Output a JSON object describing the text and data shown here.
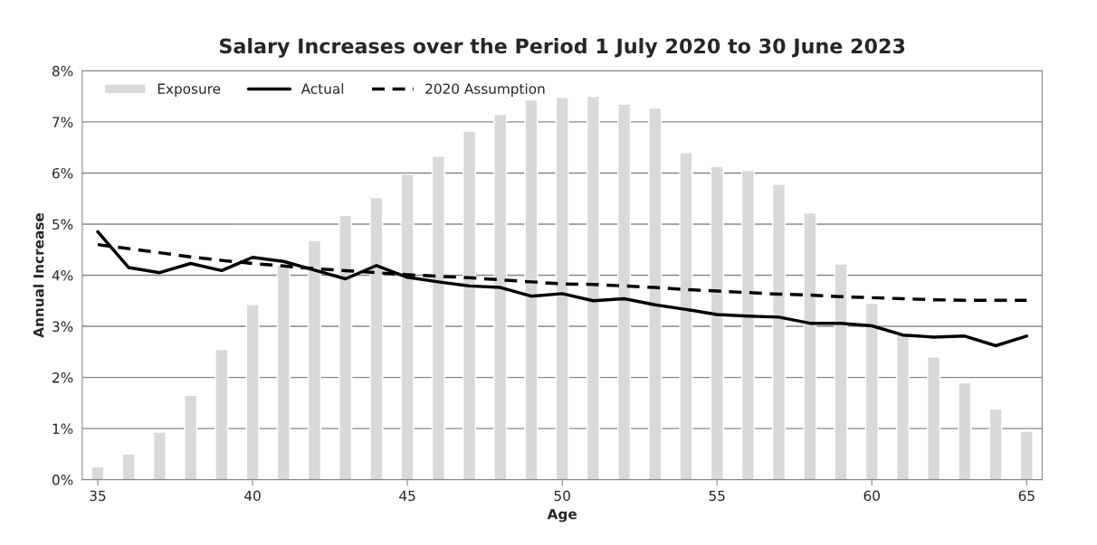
{
  "chart_data": {
    "type": "bar",
    "title": "Salary Increases over the Period 1 July 2020 to 30 June 2023",
    "xlabel": "Age",
    "ylabel": "Annual Increase",
    "x": [
      35,
      36,
      37,
      38,
      39,
      40,
      41,
      42,
      43,
      44,
      45,
      46,
      47,
      48,
      49,
      50,
      51,
      52,
      53,
      54,
      55,
      56,
      57,
      58,
      59,
      60,
      61,
      62,
      63,
      64,
      65
    ],
    "series": [
      {
        "name": "Exposure",
        "color": "#d9d9d9",
        "values": [
          0.25,
          0.5,
          0.93,
          1.65,
          2.55,
          3.43,
          4.2,
          4.68,
          5.17,
          5.52,
          5.98,
          6.33,
          6.82,
          7.15,
          7.43,
          7.48,
          7.5,
          7.35,
          7.27,
          6.4,
          6.13,
          6.05,
          5.78,
          5.22,
          4.22,
          3.45,
          2.85,
          2.4,
          1.9,
          1.38,
          0.95
        ]
      },
      {
        "name": "Actual",
        "type": "line",
        "color": "#000000",
        "line_style": "solid",
        "values": [
          4.85,
          4.15,
          4.05,
          4.23,
          4.09,
          4.35,
          4.27,
          4.1,
          3.93,
          4.19,
          3.96,
          3.87,
          3.79,
          3.76,
          3.59,
          3.64,
          3.5,
          3.54,
          3.42,
          3.33,
          3.23,
          3.2,
          3.18,
          3.06,
          3.06,
          3.01,
          2.83,
          2.79,
          2.81,
          2.62,
          2.81
        ]
      },
      {
        "name": "2020 Assumption",
        "type": "line",
        "color": "#000000",
        "line_style": "dashed",
        "values": [
          4.6,
          4.52,
          4.44,
          4.36,
          4.29,
          4.23,
          4.18,
          4.13,
          4.09,
          4.05,
          4.01,
          3.98,
          3.95,
          3.91,
          3.87,
          3.83,
          3.82,
          3.79,
          3.76,
          3.72,
          3.69,
          3.66,
          3.63,
          3.61,
          3.58,
          3.56,
          3.54,
          3.52,
          3.51,
          3.51,
          3.51
        ]
      }
    ],
    "xlim": [
      34.5,
      65.5
    ],
    "xticks": [
      35,
      40,
      45,
      50,
      55,
      60,
      65
    ],
    "ylim": [
      0,
      8
    ],
    "yticks": [
      {
        "value": 0,
        "label": "0%"
      },
      {
        "value": 1,
        "label": "1%"
      },
      {
        "value": 2,
        "label": "2%"
      },
      {
        "value": 3,
        "label": "3%"
      },
      {
        "value": 4,
        "label": "4%"
      },
      {
        "value": 5,
        "label": "5%"
      },
      {
        "value": 6,
        "label": "6%"
      },
      {
        "value": 7,
        "label": "7%"
      },
      {
        "value": 8,
        "label": "8%"
      }
    ],
    "grid": "y",
    "legend": "top left"
  }
}
